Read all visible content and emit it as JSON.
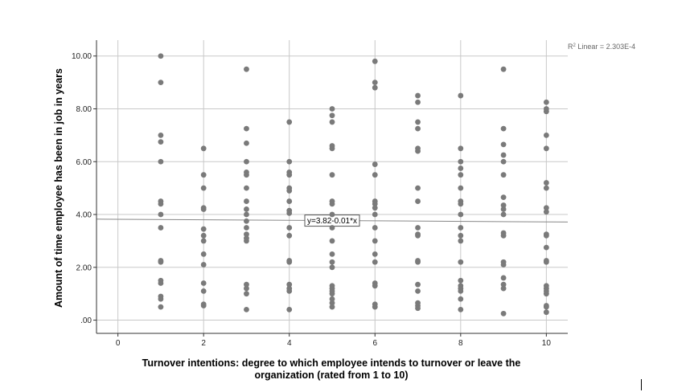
{
  "chart_data": {
    "type": "scatter",
    "xlabel_line1": "Turnover intentions: degree to which employee intends to turnover or leave the",
    "xlabel_line2": "organization (rated from 1 to 10)",
    "ylabel": "Amount of time employee has been in job in years",
    "xlim": [
      -0.5,
      10.5
    ],
    "ylim": [
      -0.5,
      10.6
    ],
    "x_ticks": [
      "0",
      "2",
      "4",
      "6",
      "8",
      "10"
    ],
    "y_ticks": [
      ".00",
      "2.00",
      "4.00",
      "6.00",
      "8.00",
      "10.00"
    ],
    "grid": true,
    "fit_line": {
      "intercept": 3.82,
      "slope": -0.01,
      "label": "y=3.82-0.01*x"
    },
    "r2_label_prefix": "R",
    "r2_label_suffix": " Linear = 2.303E-4",
    "point_color": "#7a7a7a",
    "gridline_color": "#c8c8c8",
    "points": [
      [
        1,
        10.0
      ],
      [
        1,
        9.0
      ],
      [
        1,
        7.0
      ],
      [
        1,
        6.75
      ],
      [
        1,
        6.0
      ],
      [
        1,
        4.5
      ],
      [
        1,
        4.4
      ],
      [
        1,
        4.0
      ],
      [
        1,
        3.5
      ],
      [
        1,
        2.25
      ],
      [
        1,
        2.2
      ],
      [
        1,
        1.5
      ],
      [
        1,
        1.4
      ],
      [
        1,
        0.9
      ],
      [
        1,
        0.8
      ],
      [
        1,
        0.5
      ],
      [
        2,
        6.5
      ],
      [
        2,
        5.5
      ],
      [
        2,
        5.0
      ],
      [
        2,
        4.25
      ],
      [
        2,
        4.2
      ],
      [
        2,
        3.45
      ],
      [
        2,
        3.2
      ],
      [
        2,
        3.0
      ],
      [
        2,
        2.5
      ],
      [
        2,
        2.1
      ],
      [
        2,
        1.4
      ],
      [
        2,
        1.1
      ],
      [
        2,
        0.6
      ],
      [
        2,
        0.55
      ],
      [
        3,
        9.5
      ],
      [
        3,
        7.25
      ],
      [
        3,
        6.7
      ],
      [
        3,
        6.0
      ],
      [
        3,
        5.6
      ],
      [
        3,
        5.5
      ],
      [
        3,
        5.0
      ],
      [
        3,
        4.5
      ],
      [
        3,
        4.2
      ],
      [
        3,
        4.0
      ],
      [
        3,
        3.75
      ],
      [
        3,
        3.5
      ],
      [
        3,
        3.25
      ],
      [
        3,
        3.1
      ],
      [
        3,
        3.0
      ],
      [
        3,
        1.35
      ],
      [
        3,
        1.2
      ],
      [
        3,
        1.0
      ],
      [
        3,
        0.4
      ],
      [
        4,
        7.5
      ],
      [
        4,
        6.0
      ],
      [
        4,
        5.6
      ],
      [
        4,
        5.5
      ],
      [
        4,
        5.0
      ],
      [
        4,
        4.9
      ],
      [
        4,
        4.5
      ],
      [
        4,
        4.15
      ],
      [
        4,
        4.05
      ],
      [
        4,
        3.5
      ],
      [
        4,
        3.2
      ],
      [
        4,
        2.25
      ],
      [
        4,
        2.2
      ],
      [
        4,
        1.35
      ],
      [
        4,
        1.2
      ],
      [
        4,
        1.1
      ],
      [
        4,
        0.4
      ],
      [
        5,
        8.0
      ],
      [
        5,
        7.75
      ],
      [
        5,
        7.5
      ],
      [
        5,
        6.6
      ],
      [
        5,
        6.5
      ],
      [
        5,
        5.5
      ],
      [
        5,
        4.5
      ],
      [
        5,
        4.4
      ],
      [
        5,
        4.0
      ],
      [
        5,
        3.5
      ],
      [
        5,
        3.0
      ],
      [
        5,
        2.5
      ],
      [
        5,
        2.2
      ],
      [
        5,
        2.0
      ],
      [
        5,
        1.3
      ],
      [
        5,
        1.2
      ],
      [
        5,
        1.1
      ],
      [
        5,
        1.0
      ],
      [
        5,
        0.8
      ],
      [
        5,
        0.65
      ],
      [
        5,
        0.5
      ],
      [
        6,
        9.8
      ],
      [
        6,
        9.0
      ],
      [
        6,
        8.8
      ],
      [
        6,
        5.9
      ],
      [
        6,
        5.5
      ],
      [
        6,
        4.5
      ],
      [
        6,
        4.4
      ],
      [
        6,
        4.25
      ],
      [
        6,
        4.0
      ],
      [
        6,
        3.5
      ],
      [
        6,
        3.0
      ],
      [
        6,
        2.5
      ],
      [
        6,
        2.2
      ],
      [
        6,
        1.4
      ],
      [
        6,
        1.3
      ],
      [
        6,
        0.6
      ],
      [
        6,
        0.5
      ],
      [
        7,
        8.5
      ],
      [
        7,
        8.25
      ],
      [
        7,
        7.5
      ],
      [
        7,
        7.25
      ],
      [
        7,
        6.5
      ],
      [
        7,
        6.4
      ],
      [
        7,
        5.0
      ],
      [
        7,
        4.5
      ],
      [
        7,
        3.5
      ],
      [
        7,
        3.25
      ],
      [
        7,
        3.2
      ],
      [
        7,
        2.25
      ],
      [
        7,
        2.2
      ],
      [
        7,
        1.35
      ],
      [
        7,
        1.1
      ],
      [
        7,
        0.65
      ],
      [
        7,
        0.55
      ],
      [
        7,
        0.45
      ],
      [
        8,
        8.5
      ],
      [
        8,
        6.5
      ],
      [
        8,
        6.0
      ],
      [
        8,
        5.75
      ],
      [
        8,
        5.5
      ],
      [
        8,
        5.0
      ],
      [
        8,
        4.5
      ],
      [
        8,
        4.4
      ],
      [
        8,
        4.0
      ],
      [
        8,
        3.5
      ],
      [
        8,
        3.2
      ],
      [
        8,
        3.0
      ],
      [
        8,
        2.2
      ],
      [
        8,
        1.5
      ],
      [
        8,
        1.3
      ],
      [
        8,
        1.2
      ],
      [
        8,
        1.1
      ],
      [
        8,
        0.8
      ],
      [
        8,
        0.4
      ],
      [
        9,
        9.5
      ],
      [
        9,
        7.25
      ],
      [
        9,
        6.65
      ],
      [
        9,
        6.25
      ],
      [
        9,
        6.0
      ],
      [
        9,
        5.5
      ],
      [
        9,
        4.65
      ],
      [
        9,
        4.35
      ],
      [
        9,
        4.2
      ],
      [
        9,
        4.0
      ],
      [
        9,
        3.3
      ],
      [
        9,
        3.2
      ],
      [
        9,
        2.2
      ],
      [
        9,
        2.1
      ],
      [
        9,
        1.6
      ],
      [
        9,
        1.35
      ],
      [
        9,
        1.2
      ],
      [
        9,
        0.25
      ],
      [
        10,
        8.25
      ],
      [
        10,
        8.0
      ],
      [
        10,
        7.9
      ],
      [
        10,
        7.0
      ],
      [
        10,
        6.5
      ],
      [
        10,
        5.2
      ],
      [
        10,
        5.0
      ],
      [
        10,
        4.25
      ],
      [
        10,
        4.1
      ],
      [
        10,
        3.25
      ],
      [
        10,
        3.2
      ],
      [
        10,
        2.75
      ],
      [
        10,
        2.25
      ],
      [
        10,
        2.2
      ],
      [
        10,
        1.3
      ],
      [
        10,
        1.2
      ],
      [
        10,
        1.1
      ],
      [
        10,
        1.0
      ],
      [
        10,
        0.55
      ],
      [
        10,
        0.5
      ],
      [
        10,
        0.3
      ]
    ]
  }
}
